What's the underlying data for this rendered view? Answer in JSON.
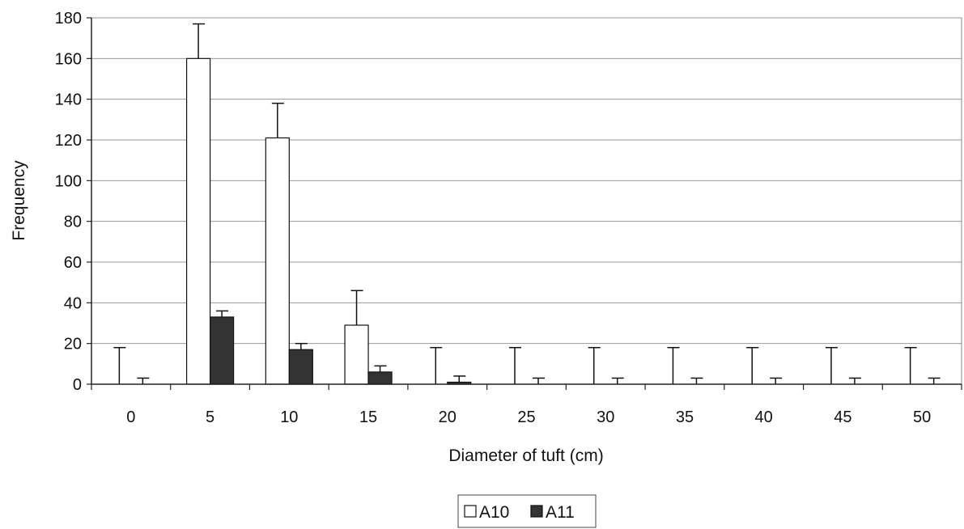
{
  "chart_data": {
    "type": "bar",
    "categories": [
      "0",
      "5",
      "10",
      "15",
      "20",
      "25",
      "30",
      "35",
      "40",
      "45",
      "50"
    ],
    "series": [
      {
        "name": "A10",
        "color": "#ffffff",
        "values": [
          0,
          160,
          121,
          29,
          0,
          0,
          0,
          0,
          0,
          0,
          0
        ],
        "error": [
          18,
          17,
          17,
          17,
          18,
          18,
          18,
          18,
          18,
          18,
          18
        ]
      },
      {
        "name": "A11",
        "color": "#333333",
        "values": [
          0,
          33,
          17,
          6,
          1,
          0,
          0,
          0,
          0,
          0,
          0
        ],
        "error": [
          3,
          3,
          3,
          3,
          3,
          3,
          3,
          3,
          3,
          3,
          3
        ]
      }
    ],
    "xlabel": "Diameter of tuft (cm)",
    "ylabel": "Frequency",
    "ylim": [
      0,
      180
    ],
    "yticks": [
      "0",
      "20",
      "40",
      "60",
      "80",
      "100",
      "120",
      "140",
      "160",
      "180"
    ],
    "grid": true,
    "legend_position": "bottom"
  }
}
